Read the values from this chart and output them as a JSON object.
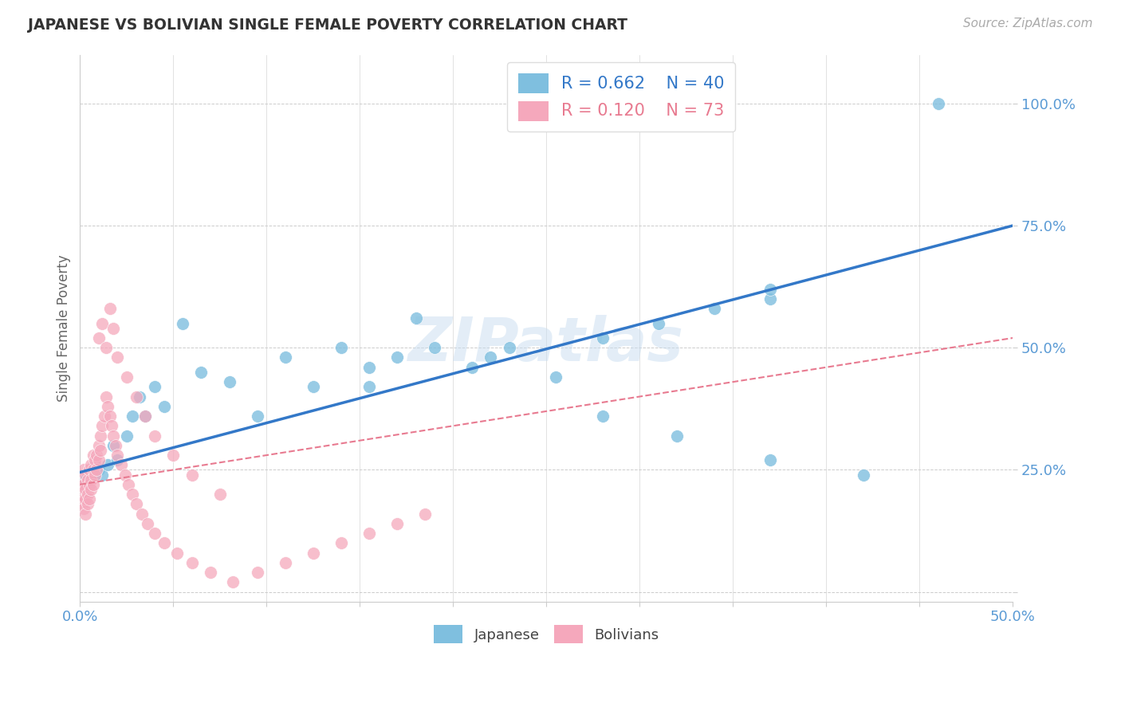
{
  "title": "JAPANESE VS BOLIVIAN SINGLE FEMALE POVERTY CORRELATION CHART",
  "source_text": "Source: ZipAtlas.com",
  "ylabel": "Single Female Poverty",
  "xlim": [
    0.0,
    0.5
  ],
  "ylim": [
    -0.02,
    1.1
  ],
  "xticks": [
    0.0,
    0.05,
    0.1,
    0.15,
    0.2,
    0.25,
    0.3,
    0.35,
    0.4,
    0.45,
    0.5
  ],
  "ytick_vals": [
    0.0,
    0.25,
    0.5,
    0.75,
    1.0
  ],
  "ytick_labels": [
    "",
    "25.0%",
    "50.0%",
    "75.0%",
    "100.0%"
  ],
  "japanese_color": "#7fbfdf",
  "bolivian_color": "#f5a8bc",
  "japanese_line_color": "#3378c8",
  "bolivian_line_color": "#e87a90",
  "r_japanese": 0.662,
  "n_japanese": 40,
  "r_bolivian": 0.12,
  "n_bolivian": 73,
  "grid_color": "#cccccc",
  "tick_label_color": "#5b9bd5",
  "watermark": "ZIPatlas",
  "jap_line_x0": 0.0,
  "jap_line_y0": 0.245,
  "jap_line_x1": 0.5,
  "jap_line_y1": 0.75,
  "bol_line_x0": 0.0,
  "bol_line_y0": 0.22,
  "bol_line_x1": 0.5,
  "bol_line_y1": 0.52,
  "japanese_x": [
    0.003,
    0.006,
    0.008,
    0.01,
    0.012,
    0.015,
    0.018,
    0.02,
    0.025,
    0.028,
    0.032,
    0.035,
    0.04,
    0.045,
    0.055,
    0.065,
    0.08,
    0.095,
    0.11,
    0.125,
    0.14,
    0.155,
    0.17,
    0.19,
    0.21,
    0.23,
    0.255,
    0.28,
    0.31,
    0.34,
    0.37,
    0.28,
    0.32,
    0.37,
    0.42,
    0.18,
    0.22,
    0.155,
    0.37,
    0.46
  ],
  "japanese_y": [
    0.23,
    0.24,
    0.26,
    0.25,
    0.24,
    0.26,
    0.3,
    0.27,
    0.32,
    0.36,
    0.4,
    0.36,
    0.42,
    0.38,
    0.55,
    0.45,
    0.43,
    0.36,
    0.48,
    0.42,
    0.5,
    0.46,
    0.48,
    0.5,
    0.46,
    0.5,
    0.44,
    0.52,
    0.55,
    0.58,
    0.6,
    0.36,
    0.32,
    0.27,
    0.24,
    0.56,
    0.48,
    0.42,
    0.62,
    1.0
  ],
  "bolivian_x": [
    0.001,
    0.001,
    0.001,
    0.002,
    0.002,
    0.002,
    0.002,
    0.003,
    0.003,
    0.003,
    0.003,
    0.004,
    0.004,
    0.004,
    0.005,
    0.005,
    0.005,
    0.006,
    0.006,
    0.006,
    0.007,
    0.007,
    0.007,
    0.008,
    0.008,
    0.009,
    0.009,
    0.01,
    0.01,
    0.011,
    0.011,
    0.012,
    0.013,
    0.014,
    0.015,
    0.016,
    0.017,
    0.018,
    0.019,
    0.02,
    0.022,
    0.024,
    0.026,
    0.028,
    0.03,
    0.033,
    0.036,
    0.04,
    0.045,
    0.052,
    0.06,
    0.07,
    0.082,
    0.095,
    0.11,
    0.125,
    0.14,
    0.155,
    0.17,
    0.185,
    0.01,
    0.012,
    0.014,
    0.016,
    0.018,
    0.02,
    0.025,
    0.03,
    0.035,
    0.04,
    0.05,
    0.06,
    0.075
  ],
  "bolivian_y": [
    0.22,
    0.2,
    0.18,
    0.25,
    0.22,
    0.19,
    0.17,
    0.24,
    0.21,
    0.19,
    0.16,
    0.23,
    0.2,
    0.18,
    0.25,
    0.22,
    0.19,
    0.26,
    0.23,
    0.21,
    0.28,
    0.25,
    0.22,
    0.27,
    0.24,
    0.28,
    0.25,
    0.3,
    0.27,
    0.32,
    0.29,
    0.34,
    0.36,
    0.4,
    0.38,
    0.36,
    0.34,
    0.32,
    0.3,
    0.28,
    0.26,
    0.24,
    0.22,
    0.2,
    0.18,
    0.16,
    0.14,
    0.12,
    0.1,
    0.08,
    0.06,
    0.04,
    0.02,
    0.04,
    0.06,
    0.08,
    0.1,
    0.12,
    0.14,
    0.16,
    0.52,
    0.55,
    0.5,
    0.58,
    0.54,
    0.48,
    0.44,
    0.4,
    0.36,
    0.32,
    0.28,
    0.24,
    0.2
  ]
}
